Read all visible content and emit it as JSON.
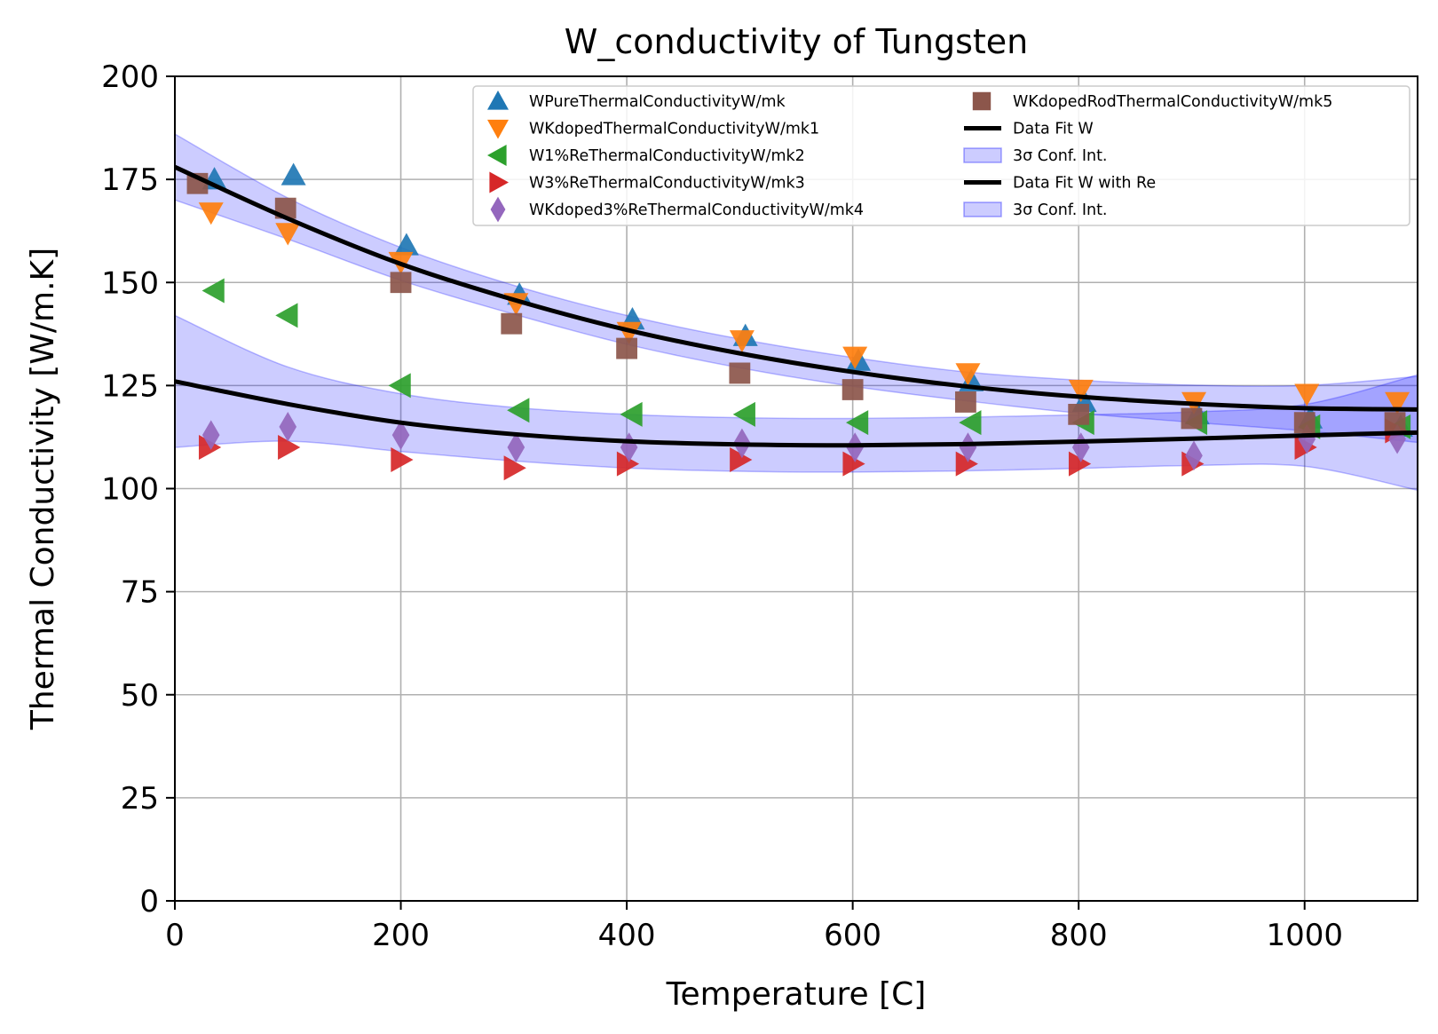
{
  "chart_data": {
    "type": "scatter",
    "title": "W_conductivity of Tungsten",
    "xlabel": "Temperature [C]",
    "ylabel": "Thermal Conductivity [W/m.K]",
    "xlim": [
      0,
      1100
    ],
    "ylim": [
      0,
      200
    ],
    "xticks": [
      0,
      200,
      400,
      600,
      800,
      1000
    ],
    "yticks": [
      0,
      25,
      50,
      75,
      100,
      125,
      150,
      175,
      200
    ],
    "grid": true,
    "legend_position": "top-right",
    "series": [
      {
        "name": "WPureThermalConductivityW/mk",
        "marker": "triangle-up",
        "color": "#1f77b4",
        "x": [
          35,
          105,
          205,
          305,
          405,
          505,
          605,
          705,
          805,
          905,
          1005,
          1085
        ],
        "y": [
          175,
          176,
          159,
          147,
          141,
          137,
          131,
          126,
          121,
          118,
          117,
          115
        ]
      },
      {
        "name": "WKdopedThermalConductivityW/mk1",
        "marker": "triangle-down",
        "color": "#ff7f0e",
        "x": [
          32,
          100,
          200,
          302,
          402,
          502,
          602,
          702,
          802,
          902,
          1002,
          1082
        ],
        "y": [
          167,
          162,
          155,
          145,
          138,
          136,
          132,
          128,
          124,
          121,
          123,
          121
        ]
      },
      {
        "name": "W1%ReThermalConductivityW/mk2",
        "marker": "triangle-left",
        "color": "#2ca02c",
        "x": [
          35,
          100,
          200,
          305,
          405,
          505,
          605,
          705,
          805,
          905,
          1005,
          1085
        ],
        "y": [
          148,
          142,
          125,
          119,
          118,
          118,
          116,
          116,
          116,
          116,
          115,
          115
        ]
      },
      {
        "name": "W3%ReThermalConductivityW/mk3",
        "marker": "triangle-right",
        "color": "#d62728",
        "x": [
          30,
          100,
          200,
          300,
          400,
          500,
          600,
          700,
          800,
          900,
          1000,
          1080
        ],
        "y": [
          110,
          110,
          107,
          105,
          106,
          107,
          106,
          106,
          106,
          106,
          110,
          114
        ]
      },
      {
        "name": "WKdoped3%ReThermalConductivityW/mk4",
        "marker": "diamond",
        "color": "#9467bd",
        "x": [
          32,
          100,
          200,
          302,
          402,
          502,
          602,
          702,
          802,
          902,
          1002,
          1082
        ],
        "y": [
          113,
          115,
          113,
          110,
          110,
          111,
          110,
          110,
          110,
          108,
          112,
          112
        ]
      },
      {
        "name": "WKdopedRodThermalConductivityW/mk5",
        "marker": "square",
        "color": "#8c564b",
        "x": [
          20,
          98,
          200,
          298,
          400,
          500,
          600,
          700,
          800,
          900,
          1000,
          1080
        ],
        "y": [
          174,
          168,
          150,
          140,
          134,
          128,
          124,
          121,
          118,
          117,
          116,
          116
        ]
      }
    ],
    "fits": [
      {
        "name": "Data Fit W",
        "color": "#000000",
        "x": [
          0,
          100,
          200,
          300,
          400,
          500,
          600,
          700,
          800,
          900,
          1000,
          1100
        ],
        "y": [
          178,
          165.5,
          154.5,
          145.8,
          138.5,
          132.8,
          128.3,
          124.8,
          122.3,
          120.6,
          119.5,
          119.2
        ],
        "band_name": "3σ Conf. Int.",
        "band_color": "#0000ff",
        "band_halfwidth": [
          8,
          5,
          4,
          3.5,
          3.5,
          3.5,
          3.5,
          3.5,
          4,
          4.5,
          5.5,
          8
        ]
      },
      {
        "name": "Data Fit W with Re",
        "color": "#000000",
        "x": [
          0,
          100,
          200,
          300,
          400,
          500,
          600,
          700,
          800,
          900,
          1000,
          1100
        ],
        "y": [
          126,
          120.5,
          116,
          113.2,
          111.5,
          110.7,
          110.5,
          110.8,
          111.4,
          112.1,
          112.9,
          113.6
        ],
        "band_name": "3σ Conf. Int.",
        "band_color": "#0000ff",
        "band_halfwidth": [
          16,
          9,
          7,
          6.5,
          6.5,
          6.5,
          6.5,
          6.5,
          6.5,
          6.5,
          7.5,
          14
        ]
      }
    ],
    "legend_order": [
      "WPureThermalConductivityW/mk",
      "WKdopedThermalConductivityW/mk1",
      "W1%ReThermalConductivityW/mk2",
      "W3%ReThermalConductivityW/mk3",
      "WKdoped3%ReThermalConductivityW/mk4",
      "WKdopedRodThermalConductivityW/mk5",
      "Data Fit W",
      "3σ Conf. Int.",
      "Data Fit W with Re",
      "3σ Conf. Int."
    ]
  }
}
